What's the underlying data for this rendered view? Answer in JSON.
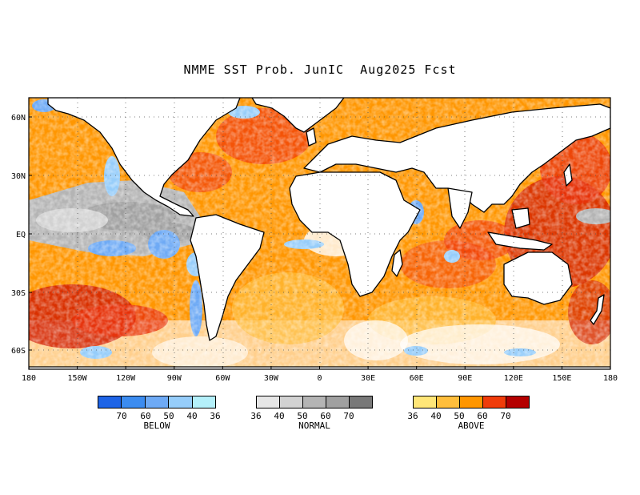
{
  "title": "NMME SST Prob. JunIC  Aug2025 Fcst",
  "map": {
    "lon_labels": [
      "180",
      "150W",
      "120W",
      "90W",
      "60W",
      "30W",
      "0",
      "30E",
      "60E",
      "90E",
      "120E",
      "150E",
      "180"
    ],
    "lat_labels": [
      "60N",
      "30N",
      "EQ",
      "30S",
      "60S"
    ],
    "grid": "dotted",
    "land_color": "#ffffff",
    "projection": "equirectangular"
  },
  "legends": {
    "below": {
      "caption": "BELOW",
      "colors": [
        "#1e64e6",
        "#3c8cf0",
        "#6eaaf5",
        "#96cdfa",
        "#b4f0fa"
      ],
      "ticks": [
        "70",
        "60",
        "50",
        "40",
        "36"
      ]
    },
    "normal": {
      "caption": "NORMAL",
      "colors": [
        "#e6e6e6",
        "#d2d2d2",
        "#b4b4b4",
        "#a0a0a0",
        "#787878"
      ],
      "ticks": [
        "36",
        "40",
        "50",
        "60",
        "70"
      ]
    },
    "above": {
      "caption": "ABOVE",
      "colors": [
        "#ffe678",
        "#ffbe3c",
        "#ff9600",
        "#f03c0a",
        "#b40000"
      ],
      "ticks": [
        "36",
        "40",
        "50",
        "60",
        "70"
      ]
    }
  }
}
